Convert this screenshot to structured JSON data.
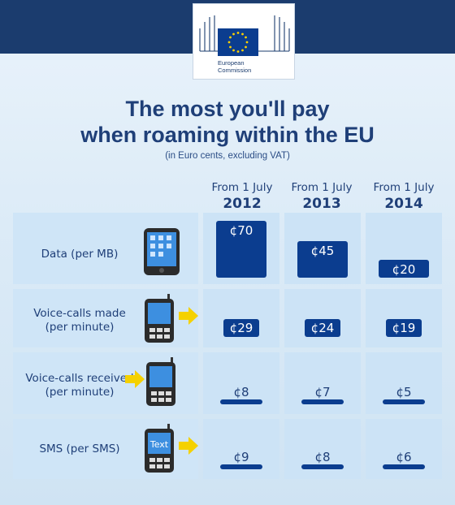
{
  "logo": {
    "line1": "European",
    "line2": "Commission"
  },
  "title": {
    "line1": "The most you'll pay",
    "line2": "when roaming within the EU"
  },
  "subtitle": "(in Euro cents, excluding VAT)",
  "columns": [
    {
      "line1": "From 1 July",
      "line2": "2012"
    },
    {
      "line1": "From 1 July",
      "line2": "2013"
    },
    {
      "line1": "From 1 July",
      "line2": "2014"
    }
  ],
  "rows": [
    {
      "label1": "Data (per MB)",
      "label2": "",
      "icon": "tablet-icon"
    },
    {
      "label1": "Voice-calls made",
      "label2": "(per minute)",
      "icon": "phone-outgoing-icon"
    },
    {
      "label1": "Voice-calls received",
      "label2": "(per minute)",
      "icon": "phone-incoming-icon"
    },
    {
      "label1": "SMS (per SMS)",
      "label2": "",
      "icon": "sms-phone-icon",
      "screen_text": "Text"
    }
  ],
  "colors": {
    "dark_band": "#1b3c6e",
    "bar": "#0b3d8f",
    "cell": "#cce3f6",
    "arrow": "#f5d100",
    "text": "#1f3f78"
  },
  "chart_data": {
    "type": "table",
    "title": "The most you'll pay when roaming within the EU",
    "subtitle": "(in Euro cents, excluding VAT)",
    "categories": [
      "From 1 July 2012",
      "From 1 July 2013",
      "From 1 July 2014"
    ],
    "unit_symbol": "¢",
    "series": [
      {
        "name": "Data (per MB)",
        "values": [
          70,
          45,
          20
        ],
        "display": "bar"
      },
      {
        "name": "Voice-calls made (per minute)",
        "values": [
          29,
          24,
          19
        ],
        "display": "badge"
      },
      {
        "name": "Voice-calls received (per minute)",
        "values": [
          8,
          7,
          5
        ],
        "display": "underline"
      },
      {
        "name": "SMS (per SMS)",
        "values": [
          9,
          8,
          6
        ],
        "display": "underline"
      }
    ]
  }
}
